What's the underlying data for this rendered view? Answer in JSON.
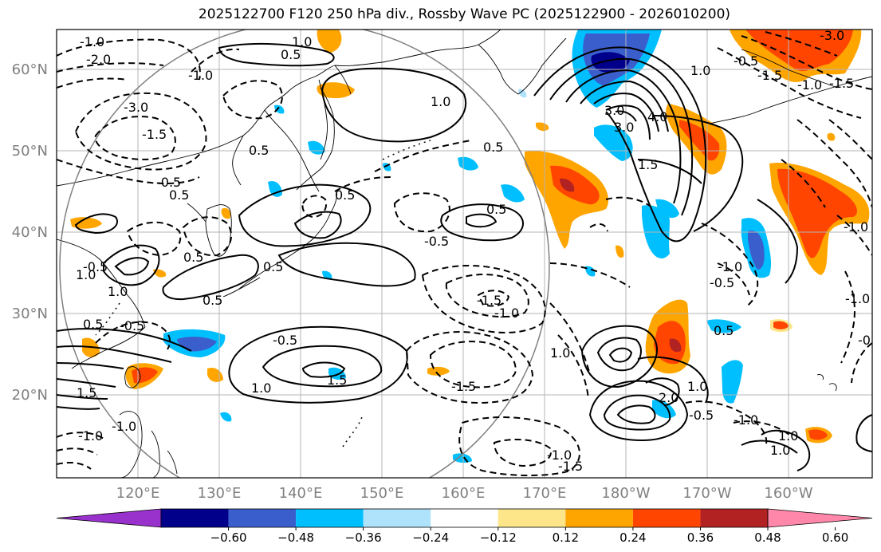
{
  "title": "2025122700 F120 250 hPa div., Rossby Wave PC (2025122900 - 2026010200)",
  "map": {
    "lat_labels": [
      "60°N",
      "50°N",
      "40°N",
      "30°N",
      "20°N"
    ],
    "lon_labels": [
      "120°E",
      "130°E",
      "140°E",
      "150°E",
      "160°E",
      "170°E",
      "180°W",
      "170°W",
      "160°W"
    ],
    "label_color": "#808080"
  },
  "colorbar": {
    "ticks": [
      "−0.60",
      "−0.48",
      "−0.36",
      "−0.24",
      "−0.12",
      "0.12",
      "0.24",
      "0.36",
      "0.48",
      "0.60"
    ],
    "colors": [
      "#9932cc",
      "#00008b",
      "#3a5fcd",
      "#00bfff",
      "#aee3fb",
      "#ffffff",
      "#fde68a",
      "#ffa500",
      "#ff4500",
      "#b22222",
      "#ff88aa"
    ]
  },
  "contour_labels": {
    "solid": [
      "1.0",
      "0.5",
      "1.0",
      "0.5",
      "0.5",
      "0.5",
      "1.0",
      "1.0",
      "1.5",
      "1.0",
      "3.0",
      "4.0",
      "3.0",
      "1.5",
      "1.0",
      "0.5",
      "0.5",
      "0.5",
      "1.0",
      "1.5",
      "1.0",
      "1.0",
      "2.0",
      "0.5",
      "1.0",
      "0.5",
      "0.5",
      "0.5"
    ],
    "dashed": [
      "-1.0",
      "-2.0",
      "-3.0",
      "-1.5",
      "-0.5",
      "-0.5",
      "-0.5",
      "-0.5",
      "-1.5",
      "-1.0",
      "-1.0",
      "-1.5",
      "-1.0",
      "-1.5",
      "-1.0",
      "-1.5",
      "-0.5",
      "-1.0",
      "-1.0",
      "-0.5",
      "-1.0",
      "-0.5",
      "-0.5",
      "-1.0",
      "-3.0",
      "-1.5",
      "-0.5",
      "-1.0",
      "-1.0"
    ]
  }
}
